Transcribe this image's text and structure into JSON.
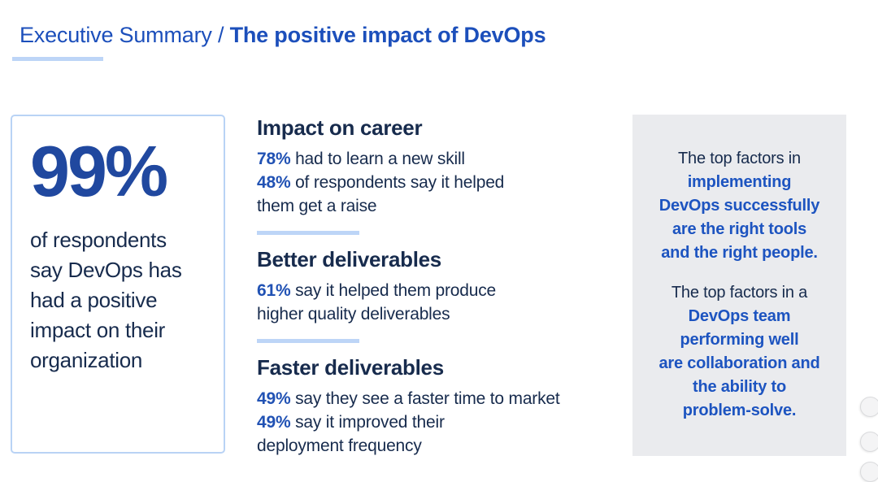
{
  "title": {
    "prefix": "Executive Summary /",
    "emphasis": "The positive impact of DevOps"
  },
  "stat_card": {
    "value": "99%",
    "lines": [
      "of respondents",
      "say DevOps has",
      "had a positive",
      "impact on their",
      "organization"
    ]
  },
  "sections": [
    {
      "heading": "Impact on career",
      "lines": [
        {
          "pct": "78%",
          "text": "had to learn a new skill"
        },
        {
          "pct": "48%",
          "text": "of respondents say it helped"
        },
        {
          "pct": "",
          "text": "them get a raise"
        }
      ]
    },
    {
      "heading": "Better deliverables",
      "lines": [
        {
          "pct": "61%",
          "text": "say it helped them produce"
        },
        {
          "pct": "",
          "text": "higher quality deliverables"
        }
      ]
    },
    {
      "heading": "Faster deliverables",
      "lines": [
        {
          "pct": "49%",
          "text": "say they see a faster time to market"
        },
        {
          "pct": "49%",
          "text": "say it improved their"
        },
        {
          "pct": "",
          "text": "deployment frequency"
        }
      ]
    }
  ],
  "callout": {
    "paragraphs": [
      {
        "intro": "The top factors in",
        "bold_lines": [
          "implementing",
          "DevOps successfully",
          "are the right tools",
          "and the right people."
        ]
      },
      {
        "intro": "The top factors in a",
        "bold_lines": [
          "DevOps team",
          "performing well",
          "are collaboration and",
          "the ability to",
          "problem-solve."
        ]
      }
    ]
  },
  "decorative_dots": 3,
  "colors": {
    "title_blue": "#1c4fbb",
    "stat_blue": "#20489f",
    "percent_blue": "#2152b4",
    "callout_bold_blue": "#1d54c0",
    "navy_text": "#172b4d",
    "light_blue_divider": "#bdd5f7",
    "card_border": "#b9d3f5",
    "panel_gray": "#eaebee"
  }
}
